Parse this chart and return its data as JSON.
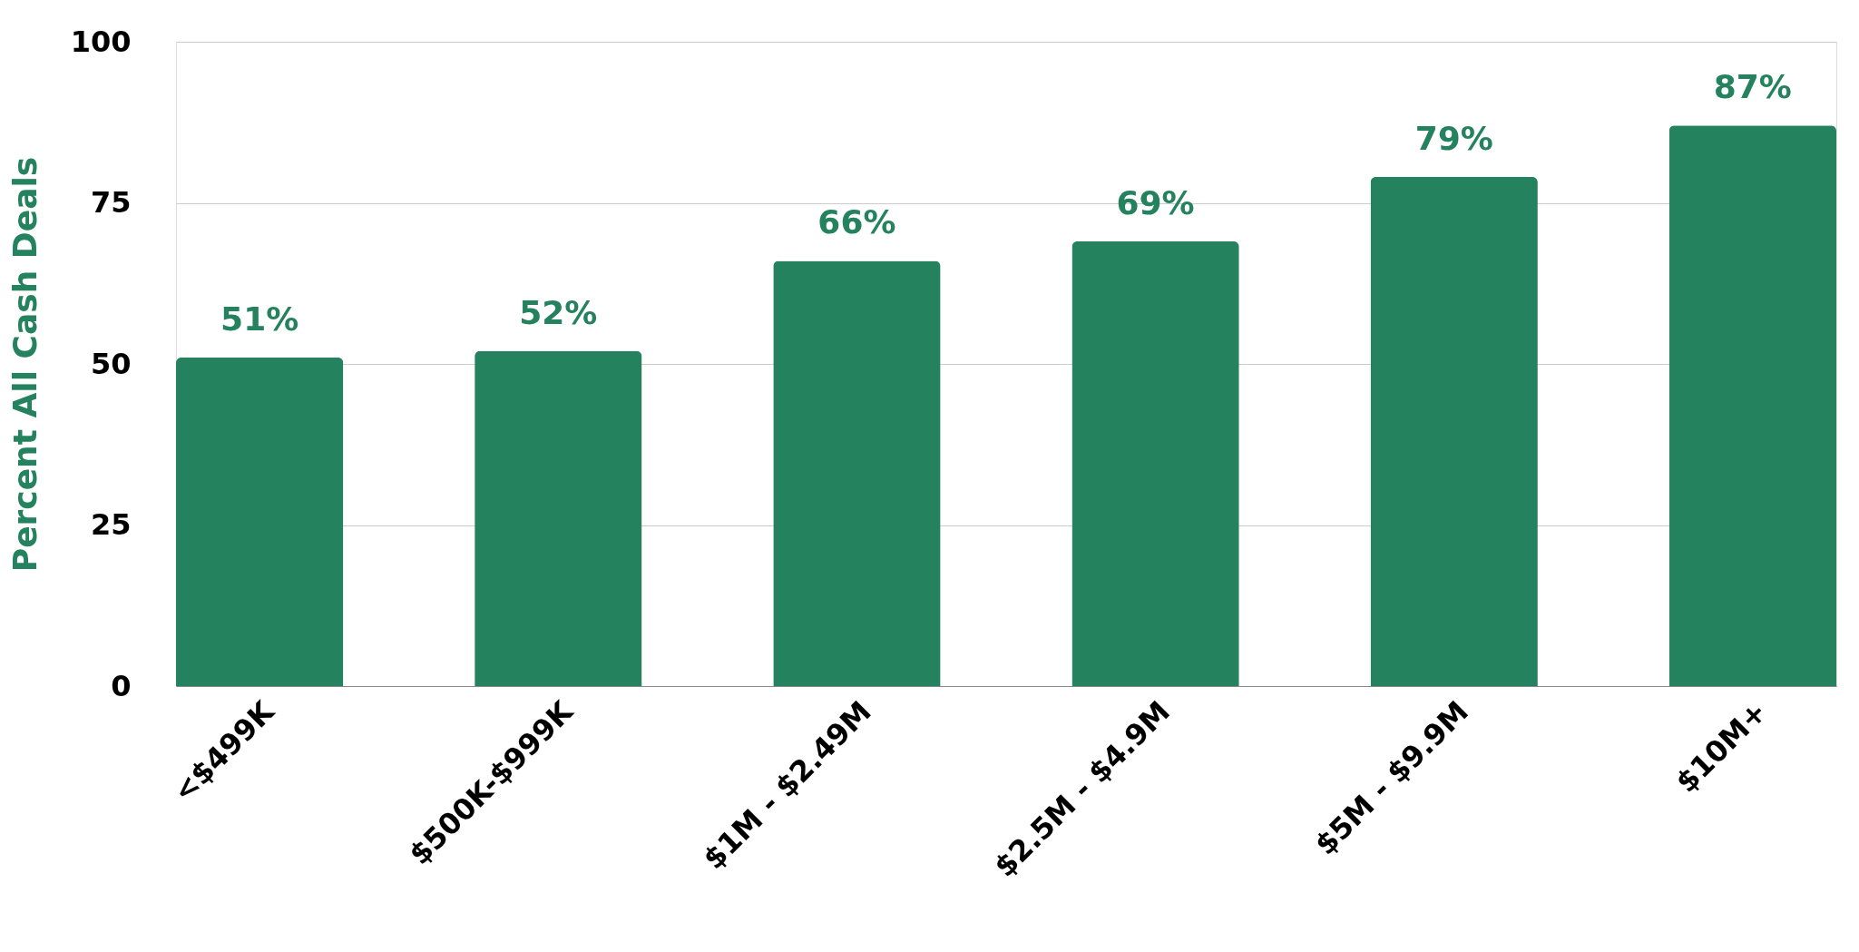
{
  "chart_data": {
    "type": "bar",
    "ylabel": "Percent All Cash Deals",
    "categories": [
      "<$499K",
      "$500K-$999K",
      "$1M - $2.49M",
      "$2.5M - $4.9M",
      "$5M - $9.9M",
      "$10M+"
    ],
    "values": [
      51,
      52,
      66,
      69,
      79,
      87
    ],
    "value_labels": [
      "51%",
      "52%",
      "66%",
      "69%",
      "79%",
      "87%"
    ],
    "color": "#25825e",
    "ylim": [
      0,
      100
    ],
    "yticks": [
      0,
      25,
      50,
      75,
      100
    ],
    "grid": "y"
  }
}
